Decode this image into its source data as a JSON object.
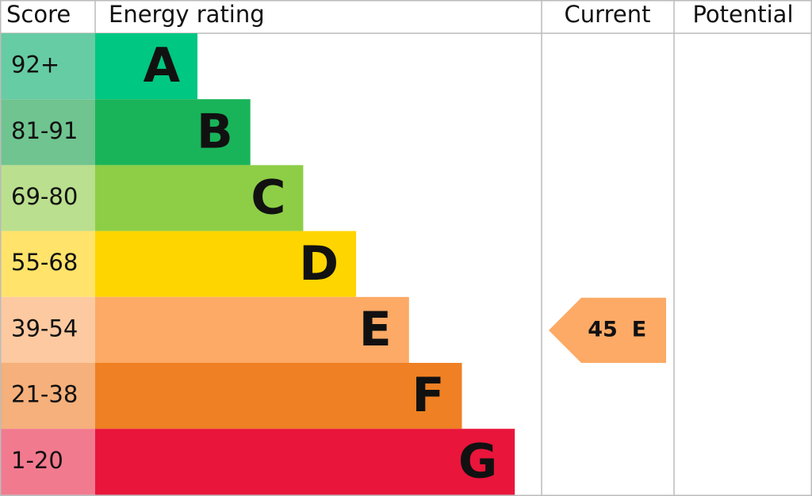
{
  "header": {
    "score": "Score",
    "rating": "Energy rating",
    "current": "Current",
    "potential": "Potential"
  },
  "bands": [
    {
      "score": "92+",
      "letter": "A",
      "color": "#00c781",
      "score_color": "#66cca4"
    },
    {
      "score": "81-91",
      "letter": "B",
      "color": "#19b459",
      "score_color": "#6fc48f"
    },
    {
      "score": "69-80",
      "letter": "C",
      "color": "#8dce46",
      "score_color": "#badf8e"
    },
    {
      "score": "55-68",
      "letter": "D",
      "color": "#ffd500",
      "score_color": "#ffe36a"
    },
    {
      "score": "39-54",
      "letter": "E",
      "color": "#fcaa65",
      "score_color": "#fdc9a0"
    },
    {
      "score": "21-38",
      "letter": "F",
      "color": "#ef8023",
      "score_color": "#f5b07b"
    },
    {
      "score": "1-20",
      "letter": "G",
      "color": "#e9153b",
      "score_color": "#f27a8f"
    }
  ],
  "current": {
    "value": "45",
    "rating": "E"
  }
}
